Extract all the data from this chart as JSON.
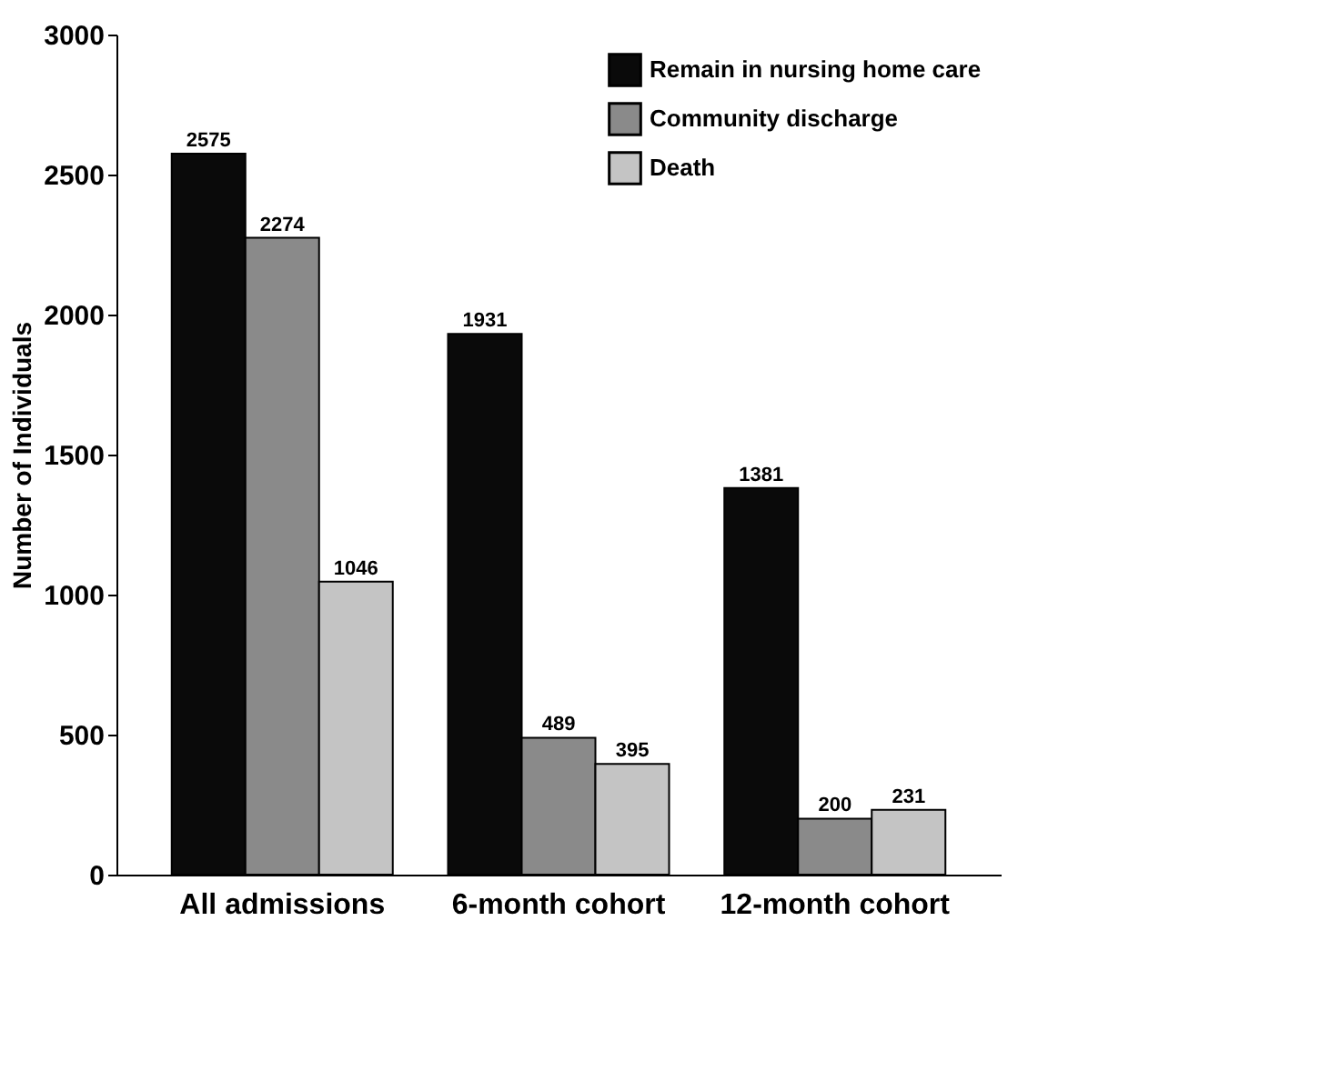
{
  "chart_data": {
    "type": "bar",
    "ylabel": "Number of Individuals",
    "categories": [
      "All admissions",
      "6-month cohort",
      "12-month cohort"
    ],
    "series": [
      {
        "name": "Remain in nursing home care",
        "color": "#0a0a0a",
        "values": [
          2575,
          1931,
          1381
        ]
      },
      {
        "name": "Community discharge",
        "color": "#8a8a8a",
        "values": [
          2274,
          489,
          200
        ]
      },
      {
        "name": "Death",
        "color": "#c4c4c4",
        "values": [
          1046,
          395,
          231
        ]
      }
    ],
    "ylim": [
      0,
      3000
    ],
    "yticks": [
      0,
      500,
      1000,
      1500,
      2000,
      2500,
      3000
    ],
    "grid": false,
    "legend": "top right",
    "data_labels": true
  }
}
